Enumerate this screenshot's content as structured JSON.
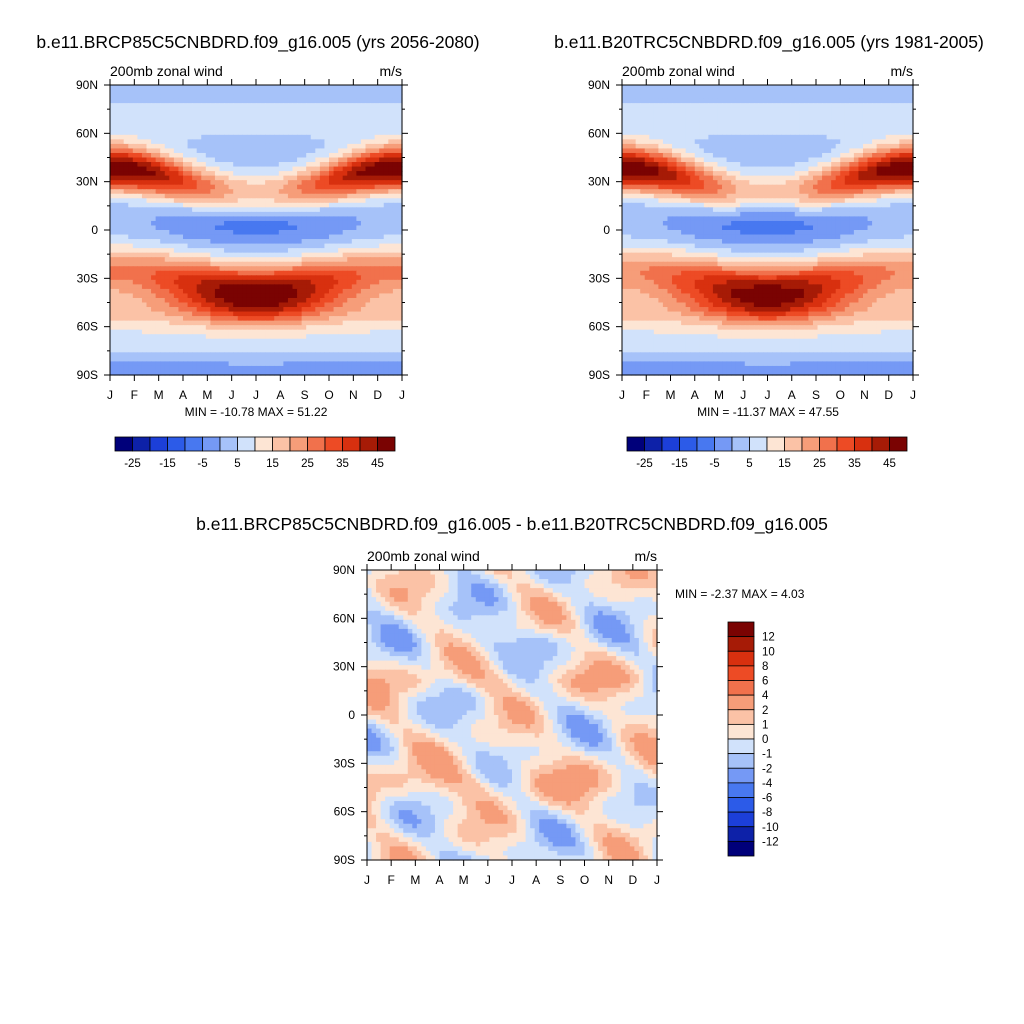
{
  "chart_data": [
    {
      "type": "heatmap",
      "title": "b.e11.BRCP85C5CNBDRD.f09_g16.005 (yrs 2056-2080)",
      "subtitle_left": "200mb zonal wind",
      "subtitle_right": "m/s",
      "x_tick_labels": [
        "J",
        "F",
        "M",
        "A",
        "M",
        "J",
        "J",
        "A",
        "S",
        "O",
        "N",
        "D",
        "J"
      ],
      "y_tick_labels": [
        "90N",
        "60N",
        "30N",
        "0",
        "30S",
        "60S",
        "90S"
      ],
      "y_tick_values": [
        90,
        60,
        30,
        0,
        -30,
        -60,
        -90
      ],
      "stats": "MIN = -10.78 MAX =  51.22",
      "min": -10.78,
      "max": 51.22,
      "colorbar": {
        "orientation": "horizontal",
        "levels": [
          -30,
          -25,
          -20,
          -15,
          -10,
          -5,
          0,
          5,
          10,
          15,
          20,
          25,
          30,
          35,
          40,
          45
        ],
        "labels": [
          "-25",
          "-15",
          "-5",
          "5",
          "15",
          "25",
          "35",
          "45"
        ],
        "label_values": [
          -25,
          -15,
          -5,
          5,
          15,
          25,
          35,
          45
        ],
        "colors": [
          "#00007a",
          "#0d21a8",
          "#1c3fd9",
          "#2c5be8",
          "#4878f0",
          "#7599f5",
          "#a6c2f9",
          "#d1e2fb",
          "#fde5d4",
          "#fbc2a6",
          "#f69d79",
          "#f1714c",
          "#ed4b25",
          "#d8300f",
          "#a61b06",
          "#7a0302"
        ]
      }
    },
    {
      "type": "heatmap",
      "title": "b.e11.B20TRC5CNBDRD.f09_g16.005 (yrs 1981-2005)",
      "subtitle_left": "200mb zonal wind",
      "subtitle_right": "m/s",
      "x_tick_labels": [
        "J",
        "F",
        "M",
        "A",
        "M",
        "J",
        "J",
        "A",
        "S",
        "O",
        "N",
        "D",
        "J"
      ],
      "y_tick_labels": [
        "90N",
        "60N",
        "30N",
        "0",
        "30S",
        "60S",
        "90S"
      ],
      "y_tick_values": [
        90,
        60,
        30,
        0,
        -30,
        -60,
        -90
      ],
      "stats": "MIN = -11.37 MAX =  47.55",
      "min": -11.37,
      "max": 47.55,
      "colorbar": {
        "orientation": "horizontal",
        "levels": [
          -30,
          -25,
          -20,
          -15,
          -10,
          -5,
          0,
          5,
          10,
          15,
          20,
          25,
          30,
          35,
          40,
          45
        ],
        "labels": [
          "-25",
          "-15",
          "-5",
          "5",
          "15",
          "25",
          "35",
          "45"
        ],
        "label_values": [
          -25,
          -15,
          -5,
          5,
          15,
          25,
          35,
          45
        ],
        "colors": [
          "#00007a",
          "#0d21a8",
          "#1c3fd9",
          "#2c5be8",
          "#4878f0",
          "#7599f5",
          "#a6c2f9",
          "#d1e2fb",
          "#fde5d4",
          "#fbc2a6",
          "#f69d79",
          "#f1714c",
          "#ed4b25",
          "#d8300f",
          "#a61b06",
          "#7a0302"
        ]
      }
    },
    {
      "type": "heatmap",
      "title": "b.e11.BRCP85C5CNBDRD.f09_g16.005 - b.e11.B20TRC5CNBDRD.f09_g16.005",
      "subtitle_left": "200mb zonal wind",
      "subtitle_right": "m/s",
      "x_tick_labels": [
        "J",
        "F",
        "M",
        "A",
        "M",
        "J",
        "J",
        "A",
        "S",
        "O",
        "N",
        "D",
        "J"
      ],
      "y_tick_labels": [
        "90N",
        "60N",
        "30N",
        "0",
        "30S",
        "60S",
        "90S"
      ],
      "y_tick_values": [
        90,
        60,
        30,
        0,
        -30,
        -60,
        -90
      ],
      "stats": "MIN =  -2.37 MAX =   4.03",
      "min": -2.37,
      "max": 4.03,
      "colorbar": {
        "orientation": "vertical",
        "levels": [
          -14,
          -12,
          -10,
          -8,
          -6,
          -4,
          -2,
          -1,
          0,
          1,
          2,
          4,
          6,
          8,
          10,
          12
        ],
        "labels": [
          "12",
          "10",
          "8",
          "6",
          "4",
          "2",
          "1",
          "0",
          "-1",
          "-2",
          "-4",
          "-6",
          "-8",
          "-10",
          "-12"
        ],
        "label_values": [
          12,
          10,
          8,
          6,
          4,
          2,
          1,
          0,
          -1,
          -2,
          -4,
          -6,
          -8,
          -10,
          -12
        ],
        "colors": [
          "#00007a",
          "#0d21a8",
          "#1c3fd9",
          "#2c5be8",
          "#4878f0",
          "#7599f5",
          "#a6c2f9",
          "#d1e2fb",
          "#fde5d4",
          "#fbc2a6",
          "#f69d79",
          "#f1714c",
          "#ed4b25",
          "#d8300f",
          "#a61b06",
          "#7a0302"
        ]
      }
    }
  ]
}
